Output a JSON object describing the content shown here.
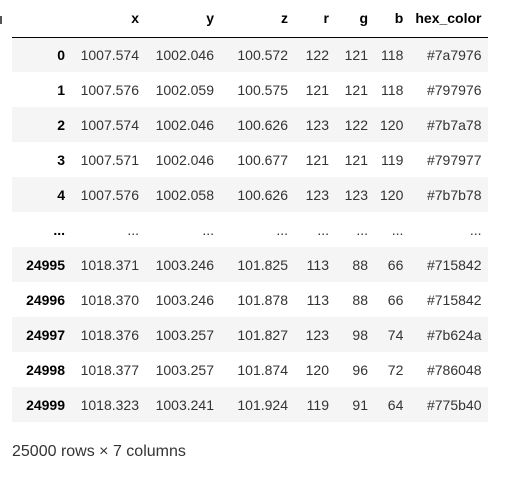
{
  "dataframe": {
    "columns": [
      "",
      "x",
      "y",
      "z",
      "r",
      "g",
      "b",
      "hex_color"
    ],
    "rows": [
      [
        "0",
        "1007.574",
        "1002.046",
        "100.572",
        "122",
        "121",
        "118",
        "#7a7976"
      ],
      [
        "1",
        "1007.576",
        "1002.059",
        "100.575",
        "121",
        "121",
        "118",
        "#797976"
      ],
      [
        "2",
        "1007.574",
        "1002.046",
        "100.626",
        "123",
        "122",
        "120",
        "#7b7a78"
      ],
      [
        "3",
        "1007.571",
        "1002.046",
        "100.677",
        "121",
        "121",
        "119",
        "#797977"
      ],
      [
        "4",
        "1007.576",
        "1002.058",
        "100.626",
        "123",
        "123",
        "120",
        "#7b7b78"
      ],
      [
        "...",
        "...",
        "...",
        "...",
        "...",
        "...",
        "...",
        "..."
      ],
      [
        "24995",
        "1018.371",
        "1003.246",
        "101.825",
        "113",
        "88",
        "66",
        "#715842"
      ],
      [
        "24996",
        "1018.370",
        "1003.246",
        "101.878",
        "113",
        "88",
        "66",
        "#715842"
      ],
      [
        "24997",
        "1018.376",
        "1003.257",
        "101.827",
        "123",
        "98",
        "74",
        "#7b624a"
      ],
      [
        "24998",
        "1018.377",
        "1003.257",
        "101.874",
        "120",
        "96",
        "72",
        "#786048"
      ],
      [
        "24999",
        "1018.323",
        "1003.241",
        "101.924",
        "119",
        "91",
        "64",
        "#775b40"
      ]
    ],
    "caption": "25000 rows × 7 columns",
    "stripe_color": "#f5f5f5"
  }
}
